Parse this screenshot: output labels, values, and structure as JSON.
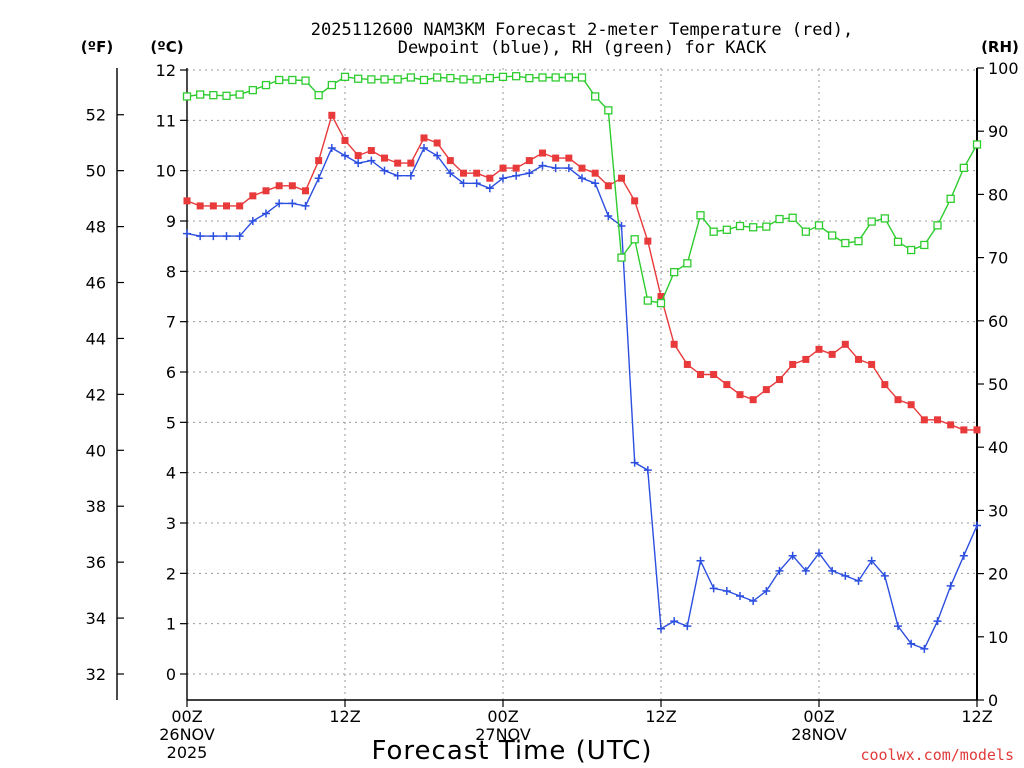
{
  "chart_data": {
    "type": "line",
    "title": [
      "2025112600 NAM3KM Forecast 2-meter Temperature (red),",
      "Dewpoint (blue), RH (green) for KACK"
    ],
    "units": {
      "fahrenheit": "(ºF)",
      "celsius": "(ºC)",
      "rh": "(RH)"
    },
    "xlabel": "Forecast Time (UTC)",
    "credit": "coolwx.com/models",
    "x": [
      0,
      1,
      2,
      3,
      4,
      5,
      6,
      7,
      8,
      9,
      10,
      11,
      12,
      13,
      14,
      15,
      16,
      17,
      18,
      19,
      20,
      21,
      22,
      23,
      24,
      25,
      26,
      27,
      28,
      29,
      30,
      31,
      32,
      33,
      34,
      35,
      36,
      37,
      38,
      39,
      40,
      41,
      42,
      43,
      44,
      45,
      46,
      47,
      48,
      49,
      50,
      51,
      52,
      53,
      54,
      55,
      56,
      57,
      58,
      59,
      60
    ],
    "xlim": [
      0,
      60
    ],
    "x_ticks": [
      {
        "hour": 0,
        "lines": [
          "00Z",
          "26NOV",
          "2025"
        ]
      },
      {
        "hour": 12,
        "lines": [
          "12Z"
        ]
      },
      {
        "hour": 24,
        "lines": [
          "00Z",
          "27NOV"
        ]
      },
      {
        "hour": 36,
        "lines": [
          "12Z"
        ]
      },
      {
        "hour": 48,
        "lines": [
          "00Z",
          "28NOV"
        ]
      },
      {
        "hour": 60,
        "lines": [
          "12Z"
        ]
      }
    ],
    "y_celsius": {
      "lim": [
        -0.5,
        12
      ],
      "ticks": [
        0,
        1,
        2,
        3,
        4,
        5,
        6,
        7,
        8,
        9,
        10,
        11,
        12
      ]
    },
    "y_fahrenheit": {
      "ticks": [
        32,
        34,
        36,
        38,
        40,
        42,
        44,
        46,
        48,
        50,
        52
      ]
    },
    "y_rh": {
      "lim": [
        0,
        100
      ],
      "ticks": [
        0,
        10,
        20,
        30,
        40,
        50,
        60,
        70,
        80,
        90,
        100
      ]
    },
    "grid": true,
    "series": [
      {
        "name": "Temperature",
        "axis": "celsius",
        "color": "#e8393b",
        "marker": "filled-square",
        "values": [
          9.4,
          9.3,
          9.3,
          9.3,
          9.3,
          9.5,
          9.6,
          9.7,
          9.7,
          9.6,
          10.2,
          11.1,
          10.6,
          10.3,
          10.4,
          10.25,
          10.15,
          10.15,
          10.65,
          10.55,
          10.2,
          9.95,
          9.95,
          9.85,
          10.05,
          10.05,
          10.2,
          10.35,
          10.25,
          10.25,
          10.05,
          9.95,
          9.7,
          9.85,
          9.4,
          8.6,
          7.5,
          6.55,
          6.15,
          5.95,
          5.95,
          5.75,
          5.55,
          5.45,
          5.65,
          5.85,
          6.15,
          6.25,
          6.45,
          6.35,
          6.55,
          6.25,
          6.15,
          5.75,
          5.45,
          5.35,
          5.05,
          5.05,
          4.95,
          4.85,
          4.85
        ]
      },
      {
        "name": "Dewpoint",
        "axis": "celsius",
        "color": "#2c4fe0",
        "marker": "plus",
        "values": [
          8.75,
          8.7,
          8.7,
          8.7,
          8.7,
          9.0,
          9.15,
          9.35,
          9.35,
          9.3,
          9.85,
          10.45,
          10.3,
          10.15,
          10.2,
          10.0,
          9.9,
          9.9,
          10.45,
          10.3,
          9.95,
          9.75,
          9.75,
          9.65,
          9.85,
          9.9,
          9.95,
          10.1,
          10.05,
          10.05,
          9.85,
          9.75,
          9.1,
          8.9,
          4.2,
          4.05,
          0.9,
          1.05,
          0.95,
          2.25,
          1.7,
          1.65,
          1.55,
          1.45,
          1.65,
          2.05,
          2.35,
          2.05,
          2.4,
          2.05,
          1.95,
          1.85,
          2.25,
          1.95,
          0.95,
          0.6,
          0.5,
          1.05,
          1.75,
          2.35,
          2.95
        ]
      },
      {
        "name": "RH",
        "axis": "rh",
        "color": "#2ecc2e",
        "marker": "open-square",
        "values": [
          95.5,
          95.8,
          95.7,
          95.6,
          95.8,
          96.5,
          97.3,
          98.1,
          98.1,
          98.0,
          95.7,
          97.3,
          98.6,
          98.3,
          98.2,
          98.2,
          98.2,
          98.5,
          98.1,
          98.5,
          98.4,
          98.2,
          98.2,
          98.4,
          98.6,
          98.7,
          98.4,
          98.5,
          98.5,
          98.5,
          98.5,
          95.5,
          93.3,
          70.0,
          72.9,
          63.2,
          62.8,
          67.7,
          69.1,
          76.7,
          74.1,
          74.4,
          75.0,
          74.8,
          74.9,
          76.1,
          76.3,
          74.1,
          75.1,
          73.5,
          72.3,
          72.6,
          75.7,
          76.2,
          72.5,
          71.2,
          72.0,
          75.1,
          79.3,
          84.2,
          87.9
        ]
      }
    ]
  }
}
